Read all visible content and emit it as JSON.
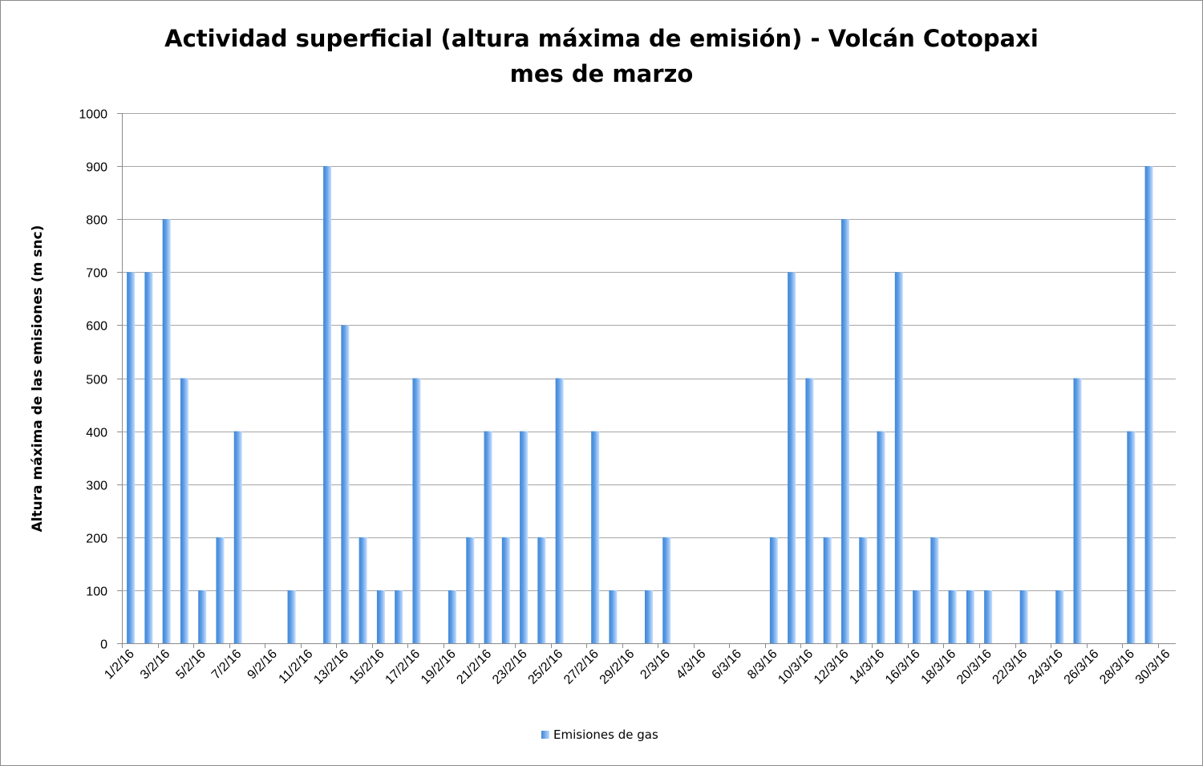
{
  "chart_data": {
    "type": "bar",
    "title_line1": "Actividad superficial (altura máxima de emisión)  - Volcán Cotopaxi",
    "title_line2": "mes de marzo",
    "xlabel": "",
    "ylabel": "Altura máxima de las emisiones (m snc)",
    "ylim": [
      0,
      1000
    ],
    "yticks": [
      0,
      100,
      200,
      300,
      400,
      500,
      600,
      700,
      800,
      900,
      1000
    ],
    "grid": true,
    "legend_position": "bottom",
    "colors": {
      "bar_dark": "#3f86d3",
      "bar_light": "#c7dfff",
      "grid": "#a6a6a6",
      "axis": "#8c8c8c"
    },
    "categories": [
      "1/2/16",
      "2/2/16",
      "3/2/16",
      "4/2/16",
      "5/2/16",
      "6/2/16",
      "7/2/16",
      "8/2/16",
      "9/2/16",
      "10/2/16",
      "11/2/16",
      "12/2/16",
      "13/2/16",
      "14/2/16",
      "15/2/16",
      "16/2/16",
      "17/2/16",
      "18/2/16",
      "19/2/16",
      "20/2/16",
      "21/2/16",
      "22/2/16",
      "23/2/16",
      "24/2/16",
      "25/2/16",
      "26/2/16",
      "27/2/16",
      "28/2/16",
      "29/2/16",
      "1/3/16",
      "2/3/16",
      "3/3/16",
      "4/3/16",
      "5/3/16",
      "6/3/16",
      "7/3/16",
      "8/3/16",
      "9/3/16",
      "10/3/16",
      "11/3/16",
      "12/3/16",
      "13/3/16",
      "14/3/16",
      "15/3/16",
      "16/3/16",
      "17/3/16",
      "18/3/16",
      "19/3/16",
      "20/3/16",
      "21/3/16",
      "22/3/16",
      "23/3/16",
      "24/3/16",
      "25/3/16",
      "26/3/16",
      "27/3/16",
      "28/3/16",
      "29/3/16",
      "30/3/16"
    ],
    "tick_labels": [
      "1/2/16",
      "3/2/16",
      "5/2/16",
      "7/2/16",
      "9/2/16",
      "11/2/16",
      "13/2/16",
      "15/2/16",
      "17/2/16",
      "19/2/16",
      "21/2/16",
      "23/2/16",
      "25/2/16",
      "27/2/16",
      "29/2/16",
      "2/3/16",
      "4/3/16",
      "6/3/16",
      "8/3/16",
      "10/3/16",
      "12/3/16",
      "14/3/16",
      "16/3/16",
      "18/3/16",
      "20/3/16",
      "22/3/16",
      "24/3/16",
      "26/3/16",
      "28/3/16",
      "30/3/16"
    ],
    "series": [
      {
        "name": "Emisiones de gas",
        "values": [
          700,
          700,
          800,
          500,
          100,
          200,
          400,
          0,
          0,
          100,
          0,
          900,
          600,
          200,
          100,
          100,
          500,
          0,
          100,
          200,
          400,
          200,
          400,
          200,
          500,
          0,
          400,
          100,
          0,
          100,
          200,
          0,
          0,
          0,
          0,
          0,
          200,
          700,
          500,
          200,
          800,
          200,
          400,
          700,
          100,
          200,
          100,
          100,
          100,
          0,
          100,
          0,
          100,
          500,
          0,
          0,
          400,
          900,
          0
        ]
      }
    ]
  }
}
